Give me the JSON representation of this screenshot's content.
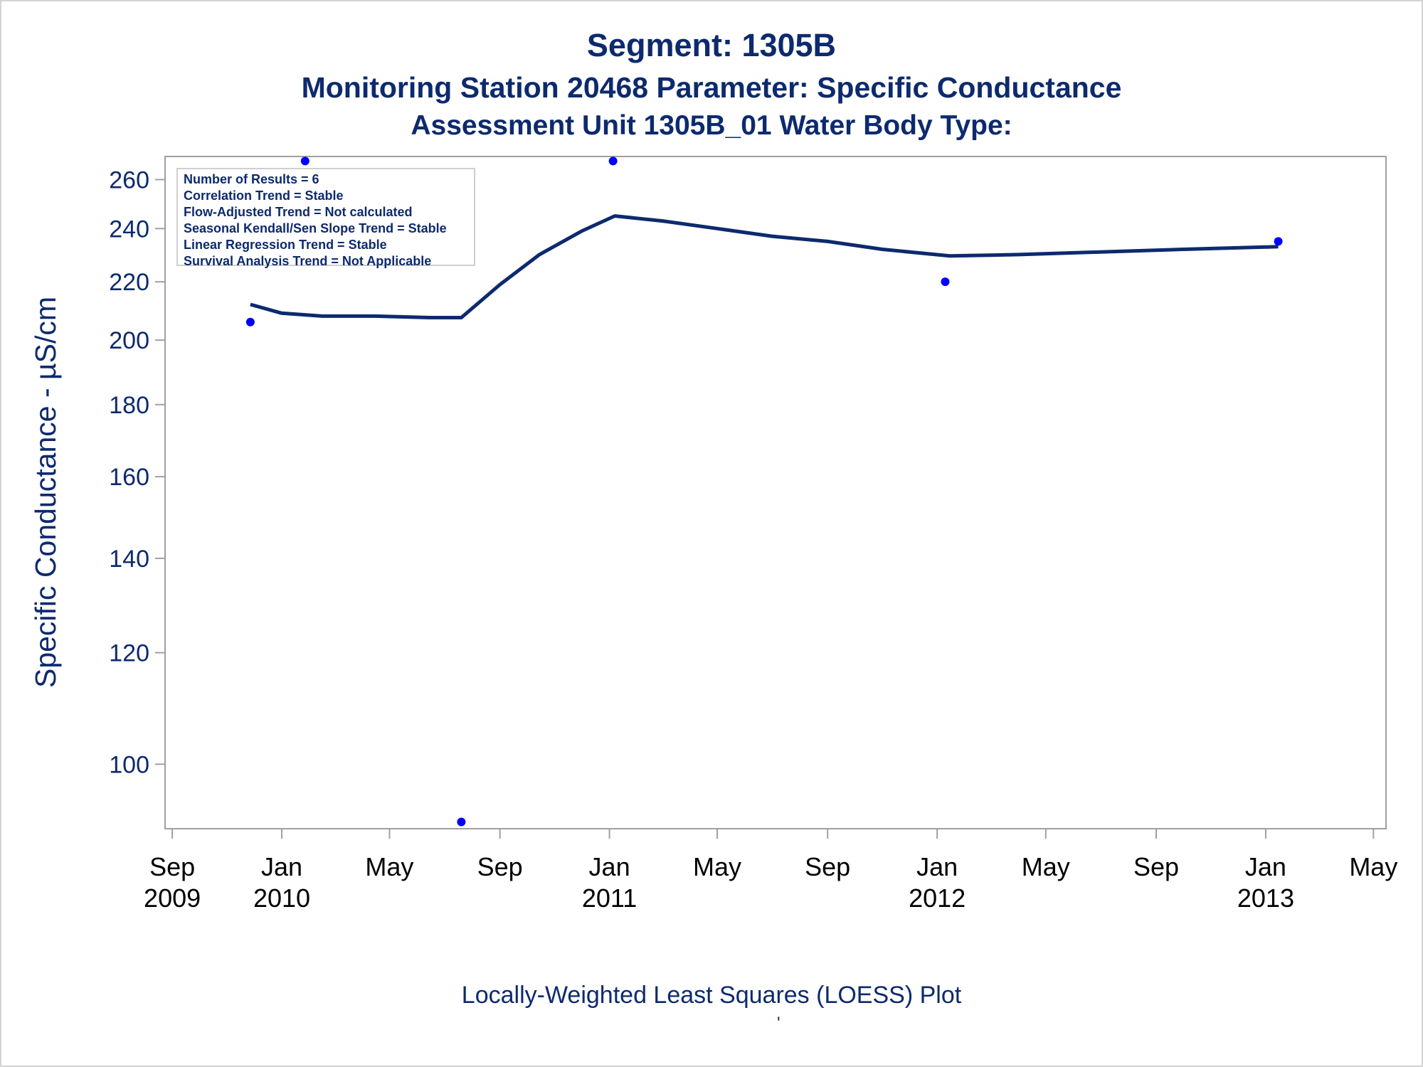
{
  "title": {
    "line1": "Segment: 1305B",
    "line2": "Monitoring Station 20468 Parameter: Specific Conductance",
    "line3": "Assessment Unit 1305B_01   Water Body Type:"
  },
  "stats_box": [
    "Number of Results = 6",
    "Correlation Trend = Stable",
    "Flow-Adjusted Trend = Not calculated",
    "Seasonal Kendall/Sen Slope Trend = Stable",
    "Linear Regression Trend = Stable",
    "Survival Analysis Trend = Not Applicable"
  ],
  "footnote": "Locally-Weighted Least Squares (LOESS) Plot",
  "footnote_mark": "'",
  "colors": {
    "text": "#0d2a6e",
    "points": "#0000ff",
    "loess": "#0d2a6e",
    "frame": "#a0a0a0"
  },
  "chart_data": {
    "type": "scatter",
    "yscale": "log",
    "ylabel": "Specific Conductance -  µS/cm",
    "xlabel": "",
    "xlim": [
      "2009-08-24",
      "2013-05-15"
    ],
    "ylim": [
      90,
      270
    ],
    "y_ticks": [
      100,
      120,
      140,
      160,
      180,
      200,
      220,
      240,
      260
    ],
    "x_ticks": [
      {
        "date": "2009-09-01",
        "label1": "Sep",
        "label2": "2009"
      },
      {
        "date": "2010-01-01",
        "label1": "Jan",
        "label2": "2010"
      },
      {
        "date": "2010-05-01",
        "label1": "May",
        "label2": ""
      },
      {
        "date": "2010-09-01",
        "label1": "Sep",
        "label2": ""
      },
      {
        "date": "2011-01-01",
        "label1": "Jan",
        "label2": "2011"
      },
      {
        "date": "2011-05-01",
        "label1": "May",
        "label2": ""
      },
      {
        "date": "2011-09-01",
        "label1": "Sep",
        "label2": ""
      },
      {
        "date": "2012-01-01",
        "label1": "Jan",
        "label2": "2012"
      },
      {
        "date": "2012-05-01",
        "label1": "May",
        "label2": ""
      },
      {
        "date": "2012-09-01",
        "label1": "Sep",
        "label2": ""
      },
      {
        "date": "2013-01-01",
        "label1": "Jan",
        "label2": "2013"
      },
      {
        "date": "2013-05-01",
        "label1": "May",
        "label2": ""
      }
    ],
    "points": [
      {
        "date": "2009-11-27",
        "value": 206
      },
      {
        "date": "2010-01-27",
        "value": 268
      },
      {
        "date": "2010-07-20",
        "value": 91
      },
      {
        "date": "2011-01-05",
        "value": 268
      },
      {
        "date": "2012-01-10",
        "value": 220
      },
      {
        "date": "2013-01-15",
        "value": 235
      }
    ],
    "loess": [
      {
        "date": "2009-11-27",
        "value": 212
      },
      {
        "date": "2010-01-01",
        "value": 209
      },
      {
        "date": "2010-02-15",
        "value": 208
      },
      {
        "date": "2010-04-15",
        "value": 208
      },
      {
        "date": "2010-06-15",
        "value": 207.5
      },
      {
        "date": "2010-07-20",
        "value": 207.5
      },
      {
        "date": "2010-09-01",
        "value": 219
      },
      {
        "date": "2010-10-15",
        "value": 230
      },
      {
        "date": "2010-12-01",
        "value": 239
      },
      {
        "date": "2011-01-07",
        "value": 245
      },
      {
        "date": "2011-03-01",
        "value": 243
      },
      {
        "date": "2011-05-01",
        "value": 240
      },
      {
        "date": "2011-07-01",
        "value": 237
      },
      {
        "date": "2011-09-01",
        "value": 235
      },
      {
        "date": "2011-11-01",
        "value": 232
      },
      {
        "date": "2012-01-15",
        "value": 229.5
      },
      {
        "date": "2012-04-01",
        "value": 230
      },
      {
        "date": "2012-07-01",
        "value": 231
      },
      {
        "date": "2012-10-01",
        "value": 232
      },
      {
        "date": "2013-01-15",
        "value": 233
      }
    ]
  }
}
